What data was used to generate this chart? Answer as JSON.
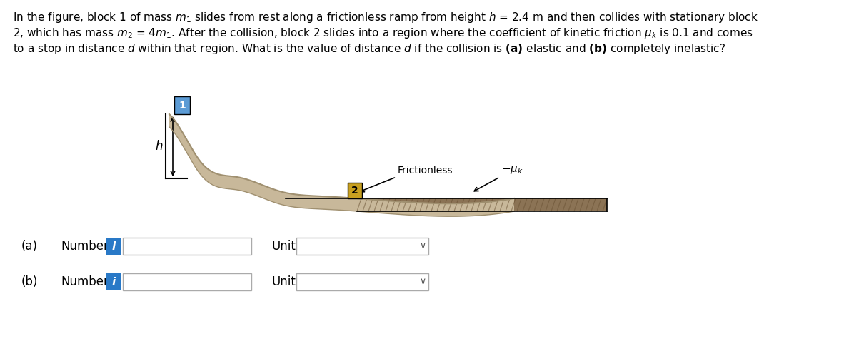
{
  "background_color": "#ffffff",
  "text_color": "#000000",
  "title_text": "In the figure, block 1 of mass $m_1$ slides from rest along a frictionless ramp from height $h$ = 2.4 m and then collides with stationary block\n2, which has mass $m_2$ = 4$m_1$. After the collision, block 2 slides into a region where the coefficient of kinetic friction $\\mu_k$ is 0.1 and comes\nto a stop in distance $d$ within that region. What is the value of distance $d$ if the collision is **(a)** elastic and **(b)** completely inelastic?",
  "frictionless_label": "Frictionless",
  "mu_label": "$-\\mu_k$",
  "h_label": "$h$",
  "block1_label": "1",
  "block2_label": "2",
  "label_a": "(a)",
  "label_b": "(b)",
  "number_label": "Number",
  "unit_label": "Unit",
  "i_button_color": "#2979c7",
  "i_button_text": "i",
  "input_box_color": "#ffffff",
  "input_box_border": "#aaaaaa",
  "dropdown_border": "#aaaaaa",
  "ramp_color": "#c8b89a",
  "ramp_dark": "#a09070",
  "floor_color": "#c8b89a",
  "floor_texture_color": "#8B7355",
  "block1_color": "#5b9bd5",
  "block2_color": "#c8a020",
  "wall_color": "#c0c0c0",
  "arrow_color": "#000000"
}
